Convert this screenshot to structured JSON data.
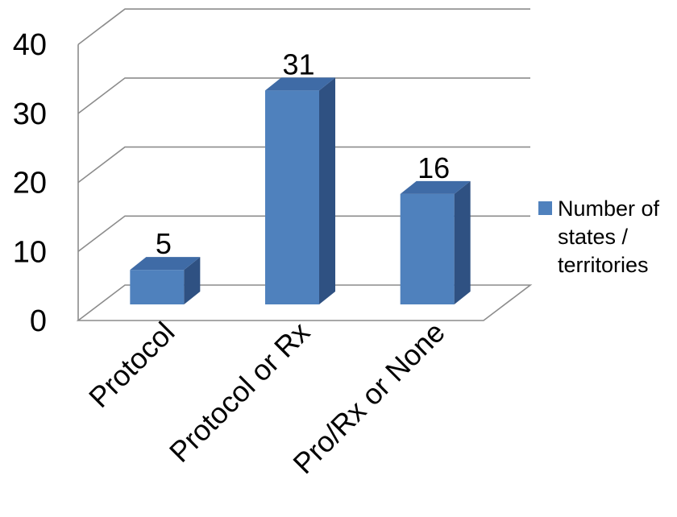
{
  "chart_data": {
    "type": "bar",
    "style": "3d-column",
    "categories": [
      "Protocol",
      "Protocol or Rx",
      "Pro/Rx or None"
    ],
    "series": [
      {
        "name": "Number of states / territories",
        "values": [
          5,
          31,
          16
        ],
        "color": "#4f81bd"
      }
    ],
    "data_labels": [
      "5",
      "31",
      "16"
    ],
    "ylim": [
      0,
      40
    ],
    "yticks": [
      0,
      10,
      20,
      30,
      40
    ],
    "grid": true,
    "legend_position": "right",
    "legend_lines": [
      "Number of",
      "states /",
      "territories"
    ],
    "colors": {
      "bar_front": "#4f81bd",
      "bar_top": "#3f6ba6",
      "bar_side": "#2f5182",
      "grid": "#8c8c8c"
    }
  }
}
